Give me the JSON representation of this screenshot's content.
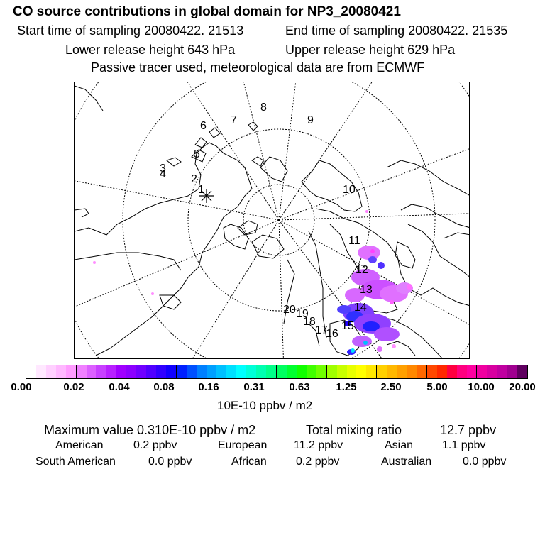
{
  "header": {
    "title": "CO  source contributions in global domain for NP3_20080421",
    "start_time": "Start time of sampling 20080422. 21513",
    "end_time": "End time of sampling 20080422. 21535",
    "lower_height": "Lower release height  643 hPa",
    "upper_height": "Upper release height  629 hPa",
    "tracer_note": "Passive tracer used, meteorological data are from ECMWF"
  },
  "map": {
    "projection": "polar stereographic",
    "release_marker": "asterisk",
    "trajectory_labels": [
      "1",
      "2",
      "3",
      "4",
      "5",
      "6",
      "7",
      "8",
      "9",
      "10",
      "11",
      "12",
      "13",
      "14",
      "15",
      "16",
      "17",
      "18",
      "19",
      "20"
    ]
  },
  "colorbar": {
    "colors": [
      "#ffffff",
      "#ffe8ff",
      "#ffd0ff",
      "#ffb8ff",
      "#ff9cff",
      "#f080ff",
      "#dc60ff",
      "#c840ff",
      "#b820ff",
      "#a000ff",
      "#8c00ff",
      "#7000ff",
      "#5000ff",
      "#3000ff",
      "#1000ff",
      "#0020ff",
      "#0050ff",
      "#0080ff",
      "#00a0ff",
      "#00c0ff",
      "#00e0ff",
      "#00ffff",
      "#00ffd8",
      "#00ffb0",
      "#00ff88",
      "#00ff60",
      "#00ff30",
      "#10ff00",
      "#40ff00",
      "#70ff00",
      "#a0ff00",
      "#c8ff00",
      "#e8ff00",
      "#ffff00",
      "#ffe800",
      "#ffd000",
      "#ffb800",
      "#ffa000",
      "#ff8800",
      "#ff6800",
      "#ff4800",
      "#ff2800",
      "#ff0040",
      "#ff0080",
      "#ff00a0",
      "#f000a0",
      "#d800a0",
      "#c000a0",
      "#a00090",
      "#600060"
    ],
    "tick_labels": [
      "0.00",
      "0.02",
      "0.04",
      "0.08",
      "0.16",
      "0.31",
      "0.63",
      "1.25",
      "2.50",
      "5.00",
      "10.00",
      "20.00"
    ],
    "units": "10E-10 ppbv / m2"
  },
  "stats": {
    "max_value": "Maximum value  0.310E-10 ppbv / m2",
    "total_mixing": "Total mixing ratio",
    "total_value": "12.7 ppbv"
  },
  "contributions": {
    "american_label": "American",
    "american_value": "0.2 ppbv",
    "european_label": "European",
    "european_value": "11.2 ppbv",
    "asian_label": "Asian",
    "asian_value": "1.1 ppbv",
    "south_american_label": "South American",
    "south_american_value": "0.0 ppbv",
    "african_label": "African",
    "african_value": "0.2 ppbv",
    "australian_label": "Australian",
    "australian_value": "0.0 ppbv"
  }
}
